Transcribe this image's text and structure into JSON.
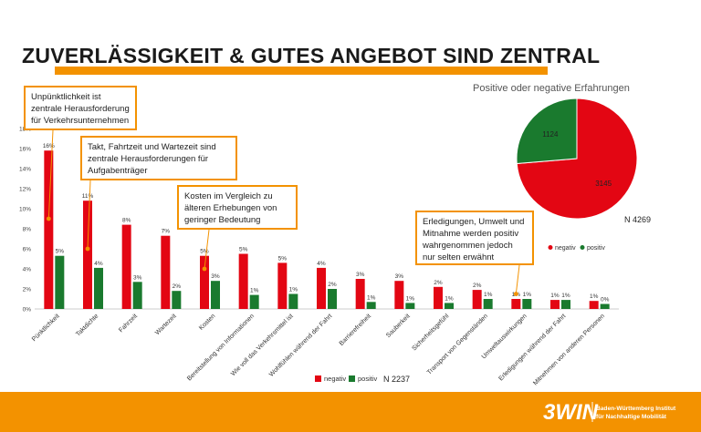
{
  "slide": {
    "title": "ZUVERLÄSSIGKEIT & GUTES ANGEBOT SIND ZENTRAL",
    "accent_color": "#f39200"
  },
  "callouts": {
    "punctuality": "Unpünktlichkeit ist zentrale Herausforderung für Verkehrsunternehmen",
    "frequency": "Takt, Fahrtzeit und Wartezeit sind zentrale Herausforderungen für Aufgabenträger",
    "costs": "Kosten im Vergleich zu älteren Erhebungen von geringer Bedeutung",
    "positive": "Erledigungen, Umwelt und Mitnahme werden positiv wahrgenommen jedoch nur selten erwähnt"
  },
  "chart_data": [
    {
      "type": "bar",
      "categories": [
        "Pünktlichkeit",
        "Taktdichte",
        "Fahrzeit",
        "Wartezeit",
        "Kosten",
        "Bereitstellung von Informationen",
        "Wie voll das Verkehrsmittel ist",
        "Wohlfühlen während der Fahrt",
        "Barrierefreiheit",
        "Sauberkeit",
        "Sicherheitsgefühl",
        "Transport von Gegenständen",
        "Umweltauswirkungen",
        "Erledigungen während der Fahrt",
        "Mitnehmen von anderen Personen"
      ],
      "series": [
        {
          "name": "negativ",
          "color": "#e30613",
          "values": [
            15.8,
            10.8,
            8.4,
            7.3,
            5.3,
            5.5,
            4.6,
            4.1,
            3.0,
            2.8,
            2.2,
            1.9,
            1.0,
            0.9,
            0.8
          ]
        },
        {
          "name": "positiv",
          "color": "#1a7a2e",
          "values": [
            5.3,
            4.1,
            2.7,
            1.8,
            2.8,
            1.4,
            1.5,
            2.0,
            0.7,
            0.6,
            0.6,
            1.0,
            1.0,
            0.9,
            0.5
          ]
        }
      ],
      "data_labels_negativ": [
        "16%",
        "11%",
        "8%",
        "7%",
        "5%",
        "5%",
        "5%",
        "4%",
        "3%",
        "3%",
        "2%",
        "2%",
        "1%",
        "1%",
        "1%"
      ],
      "data_labels_positiv": [
        "5%",
        "4%",
        "3%",
        "2%",
        "3%",
        "1%",
        "1%",
        "2%",
        "1%",
        "1%",
        "1%",
        "1%",
        "1%",
        "1%",
        "0%"
      ],
      "ylim": [
        0,
        18
      ],
      "yticks": [
        "0%",
        "2%",
        "4%",
        "6%",
        "8%",
        "10%",
        "12%",
        "14%",
        "16%",
        "18%"
      ],
      "grid": false,
      "legend": [
        "negativ",
        "positiv"
      ],
      "legend_placement": "bottom",
      "annotation": "N 2237"
    },
    {
      "type": "pie",
      "title": "Positive oder negative Erfahrungen",
      "labels": [
        "negativ",
        "positiv"
      ],
      "values": [
        3145,
        1124
      ],
      "colors": [
        "#e30613",
        "#1a7a2e"
      ],
      "legend_placement": "bottom",
      "annotation": "N 4269"
    }
  ],
  "logo": {
    "mark": "3WIN",
    "line1": "Baden-Württemberg Institut",
    "line2": "für Nachhaltige Mobilität"
  }
}
